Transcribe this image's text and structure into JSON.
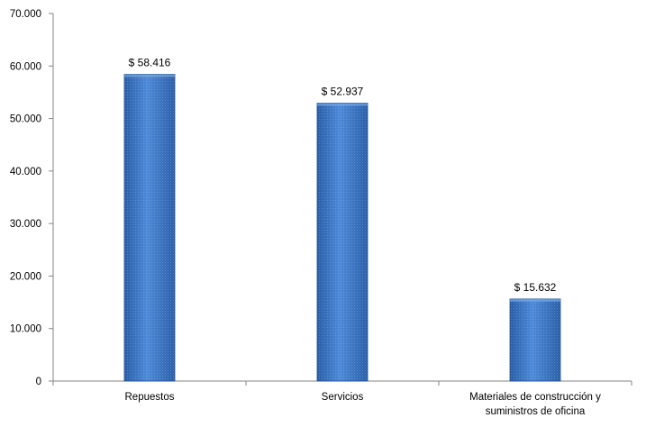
{
  "chart_data": {
    "type": "bar",
    "categories": [
      [
        "Repuestos"
      ],
      [
        "Servicios"
      ],
      [
        "Materiales de construcción y",
        "suministros de oficina"
      ]
    ],
    "values": [
      58416,
      52937,
      15632
    ],
    "data_labels": [
      "$ 58.416",
      "$ 52.937",
      "$ 15.632"
    ],
    "y_ticks": [
      0,
      10000,
      20000,
      30000,
      40000,
      50000,
      60000,
      70000
    ],
    "y_tick_labels": [
      "0",
      "10.000",
      "20.000",
      "30.000",
      "40.000",
      "50.000",
      "60.000",
      "70.000"
    ],
    "ylim": [
      0,
      70000
    ],
    "grid": false,
    "legend": "none",
    "bar_color": "#3f78c8"
  }
}
